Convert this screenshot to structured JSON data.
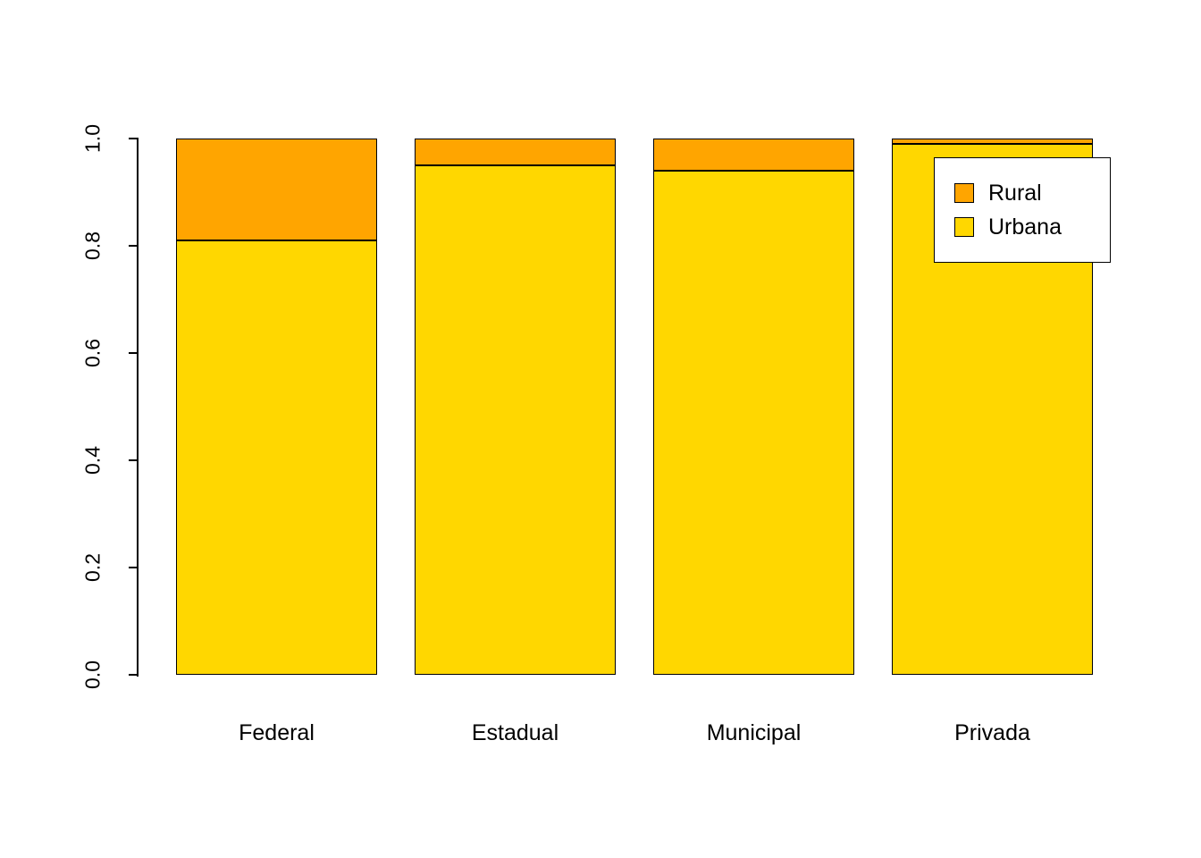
{
  "chart_data": {
    "type": "bar",
    "stacked": true,
    "title": "",
    "xlabel": "",
    "ylabel": "",
    "ylim": [
      0,
      1
    ],
    "yticks": [
      "0.0",
      "0.2",
      "0.4",
      "0.6",
      "0.8",
      "1.0"
    ],
    "grid": false,
    "categories": [
      "Federal",
      "Estadual",
      "Municipal",
      "Privada"
    ],
    "series": [
      {
        "name": "Urbana",
        "color": "#FFD700",
        "values": [
          0.81,
          0.95,
          0.94,
          0.99
        ]
      },
      {
        "name": "Rural",
        "color": "#FFA500",
        "values": [
          0.19,
          0.05,
          0.06,
          0.01
        ]
      }
    ],
    "legend": {
      "position": "top-right",
      "entries": [
        {
          "label": "Rural",
          "color": "#FFA500"
        },
        {
          "label": "Urbana",
          "color": "#FFD700"
        }
      ]
    }
  }
}
